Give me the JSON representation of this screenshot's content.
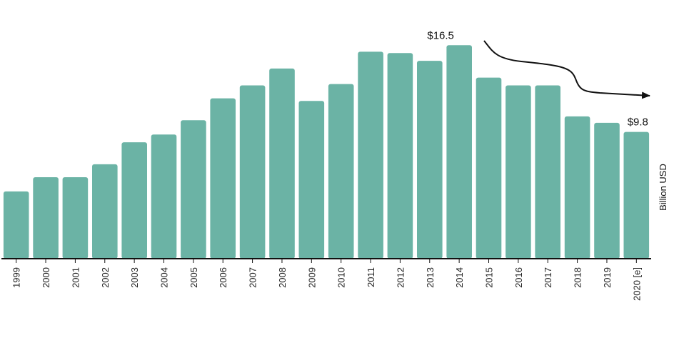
{
  "chart_data": {
    "type": "bar",
    "categories": [
      "1999",
      "2000",
      "2001",
      "2002",
      "2003",
      "2004",
      "2005",
      "2006",
      "2007",
      "2008",
      "2009",
      "2010",
      "2011",
      "2012",
      "2013",
      "2014",
      "2015",
      "2016",
      "2017",
      "2018",
      "2019",
      "2020 [e]"
    ],
    "values": [
      5.2,
      6.3,
      6.3,
      7.3,
      9.0,
      9.6,
      10.7,
      12.4,
      13.4,
      14.7,
      12.2,
      13.5,
      16.0,
      15.9,
      15.3,
      16.5,
      14.0,
      13.4,
      13.4,
      11.0,
      10.5,
      9.8
    ],
    "title": "",
    "xlabel": "",
    "ylabel": "Billion USD",
    "ylim": [
      0,
      20
    ],
    "grid": false,
    "bar_color": "#6bb3a5",
    "annotations": [
      {
        "category": "2014",
        "text": "$16.5"
      },
      {
        "category": "2020 [e]",
        "text": "$9.8"
      }
    ],
    "trend_arrow": true
  }
}
